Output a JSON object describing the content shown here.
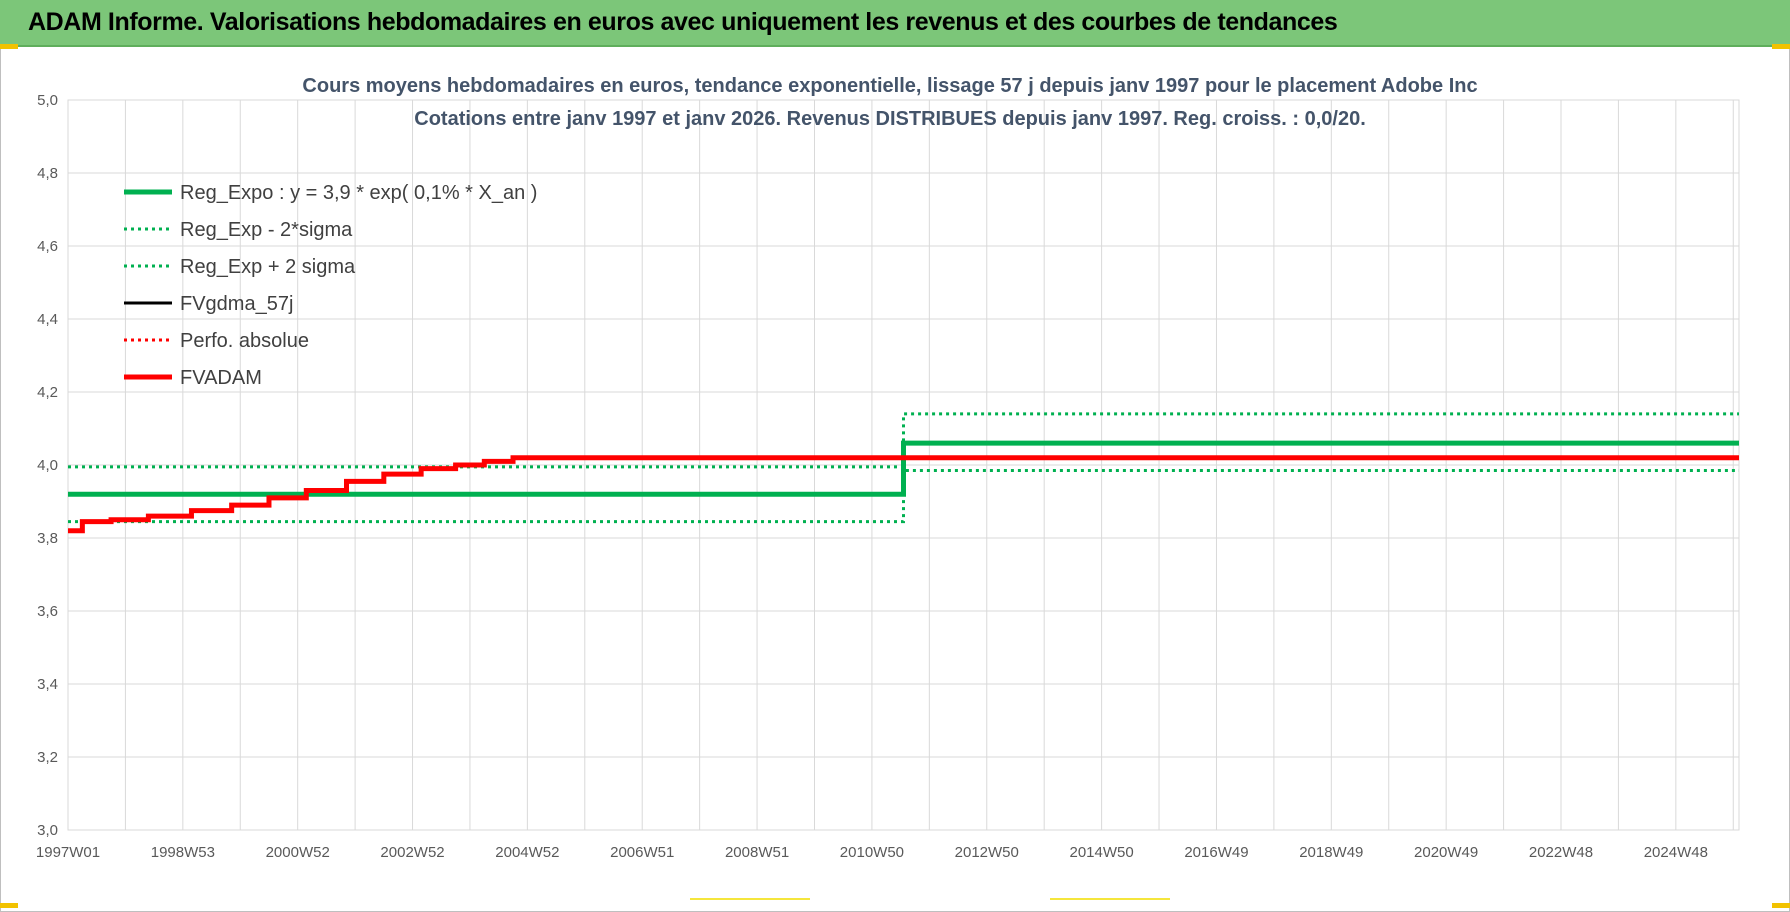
{
  "header": {
    "title": "ADAM Informe. Valorisations hebdomadaires en euros avec uniquement les revenus et des courbes de tendances"
  },
  "colors": {
    "header_bg": "#7cc679",
    "reg_expo": "#00b050",
    "fvadam": "#ff0000",
    "fvgdma": "#000000",
    "title_text": "#44546a"
  },
  "chart_data": {
    "type": "line",
    "title": "Cours moyens hebdomadaires en euros, tendance exponentielle, lissage 57 j depuis janv 1997 pour le placement Adobe Inc",
    "subtitle": "Cotations entre janv 1997 et janv 2026. Revenus DISTRIBUES depuis janv 1997. Reg. croiss. : 0,0/20.",
    "xlabel": "",
    "ylabel": "",
    "ylim": [
      3.0,
      5.0
    ],
    "y_ticks": [
      "5,0",
      "4,8",
      "4,6",
      "4,4",
      "4,2",
      "4,0",
      "3,8",
      "3,6",
      "3,4",
      "3,2",
      "3,0"
    ],
    "x_tick_labels": [
      "1997W01",
      "1998W53",
      "2000W52",
      "2002W52",
      "2004W52",
      "2006W51",
      "2008W51",
      "2010W50",
      "2012W50",
      "2014W50",
      "2016W49",
      "2018W49",
      "2020W49",
      "2022W48",
      "2024W48"
    ],
    "x_range": [
      1997.0,
      2026.1
    ],
    "grid": true,
    "legend_position": "top-left",
    "series": [
      {
        "name": "Reg_Expo : y = 3,9 * exp( 0,1% *  X_an )",
        "style": "solid-thick",
        "color": "#00b050",
        "x": [
          1997.0,
          2026.1
        ],
        "y": [
          3.92,
          4.06
        ]
      },
      {
        "name": "Reg_Exp - 2*sigma",
        "style": "dotted",
        "color": "#00b050",
        "x": [
          1997.0,
          2026.1
        ],
        "y": [
          3.845,
          3.985
        ]
      },
      {
        "name": "Reg_Exp + 2 sigma",
        "style": "dotted",
        "color": "#00b050",
        "x": [
          1997.0,
          2026.1
        ],
        "y": [
          3.995,
          4.14
        ]
      },
      {
        "name": "FVgdma_57j",
        "style": "solid",
        "color": "#000000",
        "x": [],
        "y": []
      },
      {
        "name": "Perfo. absolue",
        "style": "dotted",
        "color": "#ff0000",
        "x": [],
        "y": []
      },
      {
        "name": "FVADAM",
        "style": "solid-thick",
        "color": "#ff0000",
        "x": [
          1997.0,
          1997.5,
          1998.0,
          1998.8,
          1999.5,
          2000.2,
          2000.8,
          2001.5,
          2002.2,
          2002.8,
          2003.5,
          2004.0,
          2004.5,
          2005.0,
          2010.0,
          2015.0,
          2020.0,
          2026.1
        ],
        "y": [
          3.82,
          3.845,
          3.85,
          3.86,
          3.875,
          3.89,
          3.91,
          3.93,
          3.955,
          3.975,
          3.99,
          4.0,
          4.01,
          4.02,
          4.02,
          4.02,
          4.02,
          4.02
        ]
      }
    ]
  }
}
